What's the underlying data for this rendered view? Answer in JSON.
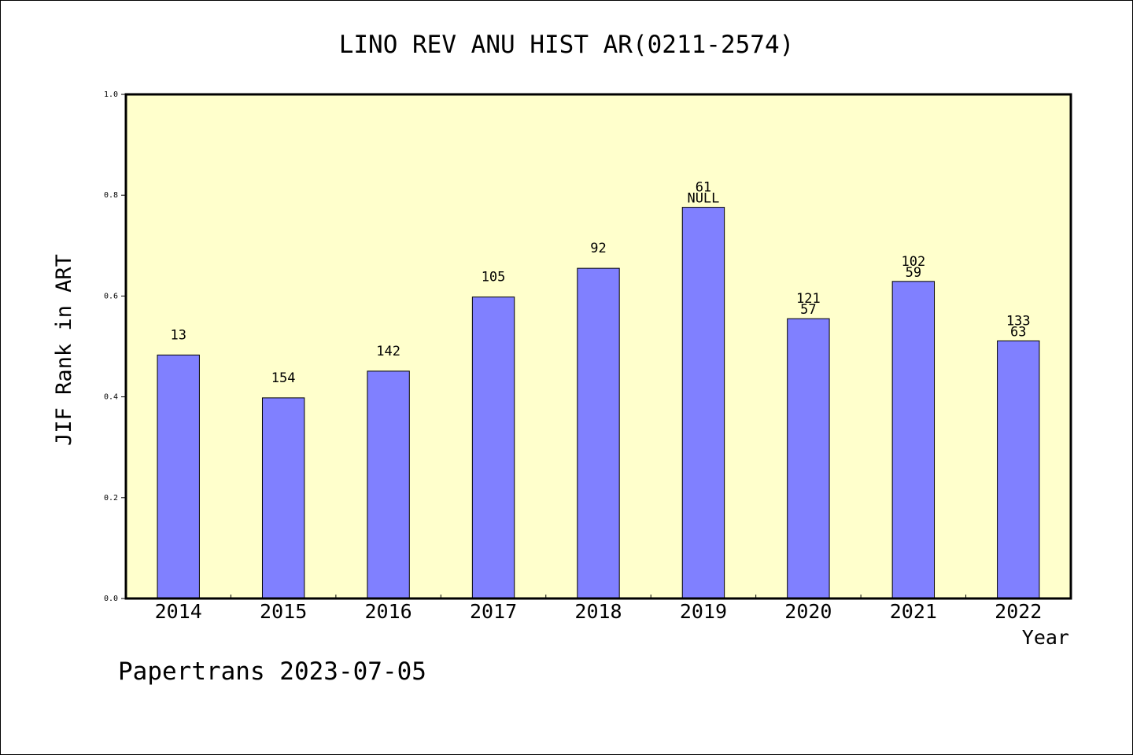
{
  "chart_data": {
    "type": "bar",
    "title": "LINO REV ANU HIST AR(0211-2574)",
    "xlabel": "Year",
    "ylabel": "JIF Rank in ART",
    "ylim": [
      0,
      1.0
    ],
    "yticks": [
      "0.0",
      "0.2",
      "0.4",
      "0.6",
      "0.8",
      "1.0"
    ],
    "categories": [
      "2014",
      "2015",
      "2016",
      "2017",
      "2018",
      "2019",
      "2020",
      "2021",
      "2022"
    ],
    "values": [
      0.483,
      0.398,
      0.451,
      0.598,
      0.655,
      0.776,
      0.555,
      0.629,
      0.511
    ],
    "label_top": [
      "13",
      "154",
      "142",
      "105",
      "92",
      "61",
      "121",
      "102",
      "133"
    ],
    "label_bottom": [
      "",
      "",
      "",
      "",
      "",
      "NULL",
      "57",
      "59",
      "63"
    ],
    "bar_color": "#8080ff",
    "plot_bg": "#ffffcc",
    "grid": false,
    "legend": "none"
  },
  "footer": "Papertrans 2023-07-05"
}
